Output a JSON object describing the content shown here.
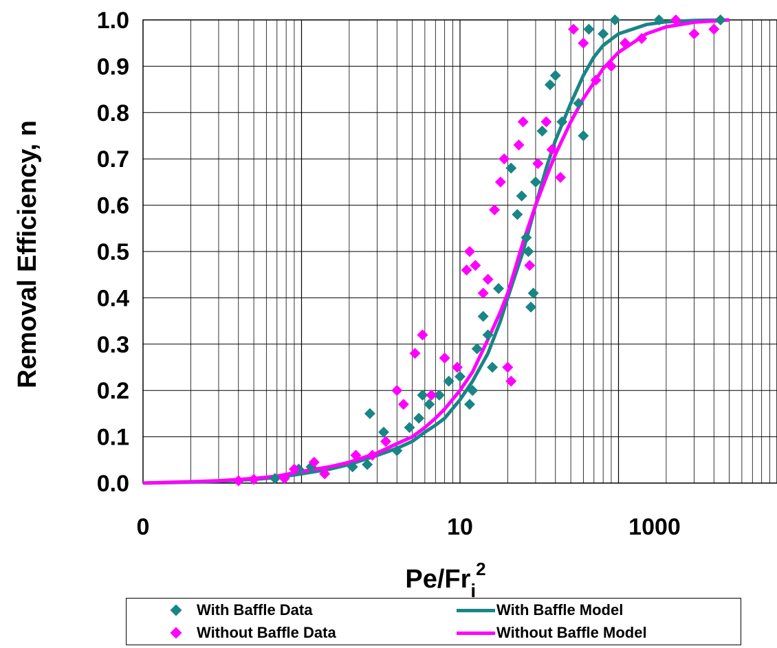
{
  "chart_data": {
    "type": "scatter",
    "x_scale": "log",
    "xlim": [
      1,
      10000
    ],
    "ylim": [
      0,
      1
    ],
    "xlabel": "Pe/Fr",
    "xlabel_sub": "i",
    "xlabel_sup": "2",
    "ylabel": "Removal Efficiency, n",
    "x_tick_labels": [
      "0",
      "10",
      "1000"
    ],
    "y_tick_labels": [
      "0.0",
      "0.1",
      "0.2",
      "0.3",
      "0.4",
      "0.5",
      "0.6",
      "0.7",
      "0.8",
      "0.9",
      "1.0"
    ],
    "grid": true,
    "legend_position": "bottom",
    "series": [
      {
        "name": "With Baffle Data",
        "kind": "scatter",
        "marker": "diamond",
        "color": "#1a8585",
        "points": [
          [
            6.8,
            0.01
          ],
          [
            9.6,
            0.03
          ],
          [
            11.5,
            0.035
          ],
          [
            21,
            0.035
          ],
          [
            26,
            0.04
          ],
          [
            27,
            0.15
          ],
          [
            33,
            0.11
          ],
          [
            40,
            0.07
          ],
          [
            48,
            0.12
          ],
          [
            55,
            0.14
          ],
          [
            58,
            0.19
          ],
          [
            64,
            0.17
          ],
          [
            74,
            0.19
          ],
          [
            85,
            0.22
          ],
          [
            100,
            0.23
          ],
          [
            115,
            0.17
          ],
          [
            120,
            0.2
          ],
          [
            128,
            0.29
          ],
          [
            140,
            0.36
          ],
          [
            150,
            0.32
          ],
          [
            160,
            0.25
          ],
          [
            175,
            0.42
          ],
          [
            210,
            0.68
          ],
          [
            230,
            0.58
          ],
          [
            245,
            0.62
          ],
          [
            262,
            0.53
          ],
          [
            270,
            0.5
          ],
          [
            280,
            0.38
          ],
          [
            290,
            0.41
          ],
          [
            300,
            0.65
          ],
          [
            330,
            0.76
          ],
          [
            370,
            0.86
          ],
          [
            400,
            0.88
          ],
          [
            440,
            0.78
          ],
          [
            560,
            0.82
          ],
          [
            600,
            0.75
          ],
          [
            650,
            0.98
          ],
          [
            800,
            0.97
          ],
          [
            950,
            1.0
          ],
          [
            1800,
            1.0
          ],
          [
            4400,
            1.0
          ]
        ]
      },
      {
        "name": "With Baffle Model",
        "kind": "line",
        "color": "#1a8585",
        "x": [
          1,
          2,
          3,
          5,
          7,
          10,
          15,
          20,
          30,
          40,
          50,
          60,
          70,
          80,
          100,
          120,
          150,
          180,
          200,
          250,
          300,
          350,
          400,
          500,
          600,
          700,
          800,
          1000,
          1500,
          2000,
          3000,
          5000
        ],
        "y": [
          0.0,
          0.002,
          0.004,
          0.008,
          0.012,
          0.02,
          0.03,
          0.04,
          0.06,
          0.075,
          0.09,
          0.11,
          0.125,
          0.14,
          0.18,
          0.22,
          0.28,
          0.35,
          0.4,
          0.5,
          0.6,
          0.68,
          0.74,
          0.82,
          0.88,
          0.92,
          0.945,
          0.97,
          0.99,
          0.996,
          0.999,
          1.0
        ]
      },
      {
        "name": "Without Baffle Data",
        "kind": "scatter",
        "marker": "diamond",
        "color": "#ff00ff",
        "points": [
          [
            4,
            0.005
          ],
          [
            5,
            0.008
          ],
          [
            7.8,
            0.01
          ],
          [
            9,
            0.03
          ],
          [
            12,
            0.045
          ],
          [
            14,
            0.02
          ],
          [
            22,
            0.06
          ],
          [
            28,
            0.06
          ],
          [
            34,
            0.09
          ],
          [
            40,
            0.2
          ],
          [
            44,
            0.17
          ],
          [
            52,
            0.28
          ],
          [
            58,
            0.32
          ],
          [
            66,
            0.19
          ],
          [
            80,
            0.27
          ],
          [
            96,
            0.25
          ],
          [
            110,
            0.46
          ],
          [
            115,
            0.5
          ],
          [
            125,
            0.47
          ],
          [
            140,
            0.41
          ],
          [
            150,
            0.44
          ],
          [
            165,
            0.59
          ],
          [
            180,
            0.65
          ],
          [
            190,
            0.7
          ],
          [
            200,
            0.25
          ],
          [
            210,
            0.22
          ],
          [
            235,
            0.73
          ],
          [
            250,
            0.78
          ],
          [
            275,
            0.47
          ],
          [
            310,
            0.69
          ],
          [
            350,
            0.78
          ],
          [
            380,
            0.72
          ],
          [
            430,
            0.66
          ],
          [
            520,
            0.98
          ],
          [
            600,
            0.95
          ],
          [
            720,
            0.87
          ],
          [
            900,
            0.9
          ],
          [
            1100,
            0.95
          ],
          [
            1400,
            0.96
          ],
          [
            2300,
            1.0
          ],
          [
            3000,
            0.97
          ],
          [
            4000,
            0.98
          ]
        ]
      },
      {
        "name": "Without Baffle Model",
        "kind": "line",
        "color": "#ff00ff",
        "x": [
          1,
          2,
          3,
          5,
          7,
          10,
          15,
          20,
          30,
          40,
          50,
          60,
          70,
          80,
          100,
          120,
          150,
          180,
          200,
          250,
          300,
          350,
          400,
          500,
          600,
          700,
          800,
          1000,
          1500,
          2000,
          3000,
          5000
        ],
        "y": [
          0.0,
          0.003,
          0.005,
          0.01,
          0.015,
          0.025,
          0.035,
          0.045,
          0.065,
          0.085,
          0.1,
          0.12,
          0.14,
          0.16,
          0.2,
          0.24,
          0.31,
          0.37,
          0.41,
          0.52,
          0.6,
          0.66,
          0.71,
          0.78,
          0.83,
          0.865,
          0.895,
          0.93,
          0.97,
          0.985,
          0.995,
          1.0
        ]
      }
    ]
  },
  "legend": {
    "items": [
      {
        "label": "With Baffle Data",
        "color": "#1a8585",
        "kind": "marker"
      },
      {
        "label": "With Baffle Model",
        "color": "#1a8585",
        "kind": "line"
      },
      {
        "label": "Without Baffle Data",
        "color": "#ff00ff",
        "kind": "marker"
      },
      {
        "label": "Without Baffle Model",
        "color": "#ff00ff",
        "kind": "line"
      }
    ]
  }
}
